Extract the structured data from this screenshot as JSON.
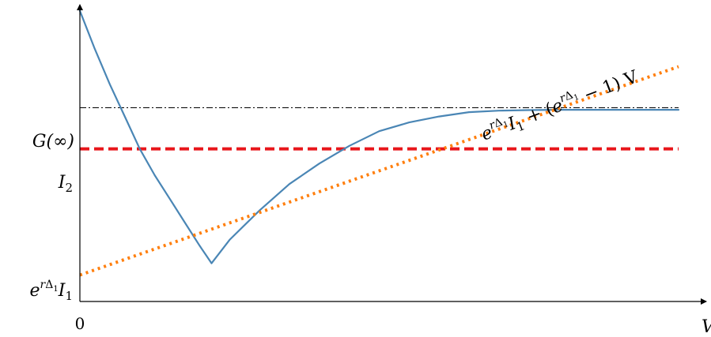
{
  "chart_data": {
    "type": "line",
    "title": "",
    "xlabel": "V",
    "ylabel": "",
    "xlim": [
      0,
      10
    ],
    "ylim": [
      0,
      10
    ],
    "x_tick_labels": [
      "0"
    ],
    "y_tick_labels": [
      {
        "label": "G(∞)",
        "value": 6.6
      },
      {
        "label": "I₂",
        "value": 5.2
      },
      {
        "label": "e^{rΔ₁} I₁",
        "value": 0.9
      }
    ],
    "series": [
      {
        "name": "",
        "color": "#4a86b5",
        "style": "solid",
        "points": [
          [
            0.0,
            9.9
          ],
          [
            0.25,
            8.6
          ],
          [
            0.5,
            7.4
          ],
          [
            0.75,
            6.3
          ],
          [
            1.0,
            5.2
          ],
          [
            1.25,
            4.3
          ],
          [
            1.5,
            3.5
          ],
          [
            1.75,
            2.7
          ],
          [
            2.0,
            1.9
          ],
          [
            2.1,
            1.6
          ],
          [
            2.2,
            1.3
          ],
          [
            2.5,
            2.1
          ],
          [
            3.0,
            3.1
          ],
          [
            3.5,
            4.0
          ],
          [
            4.0,
            4.7
          ],
          [
            4.5,
            5.3
          ],
          [
            5.0,
            5.8
          ],
          [
            5.5,
            6.1
          ],
          [
            6.0,
            6.3
          ],
          [
            6.5,
            6.45
          ],
          [
            7.0,
            6.5
          ],
          [
            7.5,
            6.52
          ],
          [
            8.0,
            6.53
          ],
          [
            8.5,
            6.53
          ],
          [
            9.0,
            6.53
          ],
          [
            10.0,
            6.53
          ]
        ]
      },
      {
        "name": "",
        "color": "#ff7f0e",
        "style": "dotted",
        "points": [
          [
            0.0,
            0.9
          ],
          [
            10.0,
            8.0
          ]
        ],
        "annotation": "e^{rΔ₁} I₁ + (e^{rΔ₁} − 1) V"
      },
      {
        "name": "I₂",
        "color": "#e8161b",
        "style": "dashed",
        "points": [
          [
            0.0,
            5.2
          ],
          [
            10.0,
            5.2
          ]
        ]
      },
      {
        "name": "G(∞)",
        "color": "#000000",
        "style": "dashdot",
        "points": [
          [
            0.0,
            6.6
          ],
          [
            10.0,
            6.6
          ]
        ]
      }
    ],
    "grid": false,
    "legend": "none"
  }
}
